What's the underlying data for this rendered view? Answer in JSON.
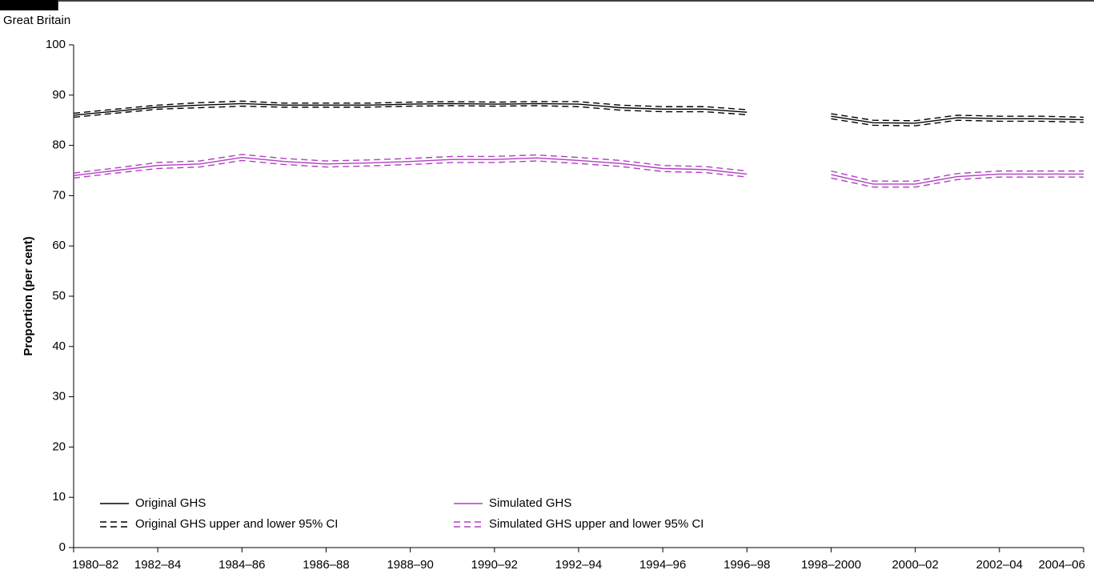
{
  "chart_data": {
    "type": "line",
    "subtitle": "Great Britain",
    "y_label": "Proportion (per cent)",
    "categories": [
      "1980–82",
      null,
      "1982–84",
      null,
      "1984–86",
      null,
      "1986–88",
      null,
      "1988–90",
      null,
      "1990–92",
      null,
      "1992–94",
      null,
      "1994–96",
      null,
      "1996–98",
      null,
      "1998–2000",
      null,
      "2000–02",
      null,
      "2002–04",
      null,
      "2004–06"
    ],
    "series": [
      {
        "name": "Original GHS",
        "color": "#000000",
        "dashed": false,
        "values": [
          86.0,
          86.8,
          87.6,
          88.0,
          88.3,
          88.0,
          88.0,
          88.0,
          88.2,
          88.3,
          88.2,
          88.3,
          88.2,
          87.5,
          87.2,
          87.2,
          86.6,
          null,
          85.8,
          84.5,
          84.4,
          85.5,
          85.3,
          85.3,
          85.1
        ]
      },
      {
        "name": "Original GHS upper and lower 95% CI",
        "color": "#000000",
        "dashed": true,
        "upper": [
          86.4,
          87.2,
          88.0,
          88.5,
          88.8,
          88.4,
          88.4,
          88.4,
          88.6,
          88.7,
          88.6,
          88.7,
          88.7,
          88.0,
          87.7,
          87.7,
          87.1,
          null,
          86.3,
          85.0,
          84.9,
          86.0,
          85.8,
          85.8,
          85.6
        ],
        "lower": [
          85.6,
          86.4,
          87.2,
          87.5,
          87.8,
          87.6,
          87.6,
          87.6,
          87.8,
          87.9,
          87.8,
          87.9,
          87.7,
          87.0,
          86.7,
          86.7,
          86.1,
          null,
          85.3,
          84.0,
          83.9,
          85.0,
          84.8,
          84.8,
          84.6
        ]
      },
      {
        "name": "Simulated GHS",
        "color": "#b040c0",
        "dashed": false,
        "values": [
          74.0,
          75.0,
          76.0,
          76.3,
          77.6,
          76.8,
          76.3,
          76.5,
          76.8,
          77.2,
          77.2,
          77.5,
          77.0,
          76.4,
          75.4,
          75.2,
          74.3,
          null,
          74.2,
          72.3,
          72.3,
          73.8,
          74.3,
          74.3,
          74.3
        ]
      },
      {
        "name": "Simulated GHS upper and lower 95% CI",
        "color": "#b040c0",
        "dashed": true,
        "upper": [
          74.5,
          75.5,
          76.6,
          76.9,
          78.2,
          77.4,
          76.9,
          77.1,
          77.4,
          77.8,
          77.8,
          78.1,
          77.6,
          77.0,
          76.0,
          75.8,
          74.9,
          null,
          74.9,
          72.9,
          72.9,
          74.4,
          74.9,
          74.9,
          74.9
        ],
        "lower": [
          73.5,
          74.5,
          75.4,
          75.7,
          77.0,
          76.2,
          75.7,
          75.9,
          76.2,
          76.6,
          76.6,
          76.9,
          76.4,
          75.8,
          74.8,
          74.6,
          73.7,
          null,
          73.5,
          71.7,
          71.7,
          73.2,
          73.7,
          73.7,
          73.7
        ]
      }
    ],
    "ylim": [
      0,
      100
    ],
    "yticks": [
      0,
      10,
      20,
      30,
      40,
      50,
      60,
      70,
      80,
      90,
      100
    ],
    "grid": false,
    "legend": "lower left"
  }
}
